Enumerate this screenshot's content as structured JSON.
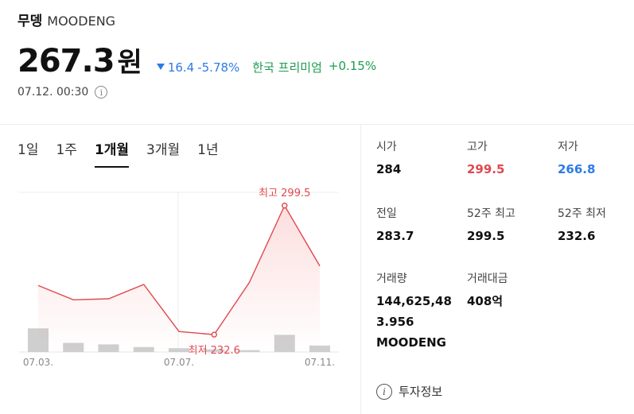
{
  "coin": {
    "name_ko": "무뎅",
    "name_en": "MOODENG"
  },
  "price": {
    "value": "267.3",
    "unit": "원"
  },
  "change": {
    "amount": "16.4",
    "percent": "-5.78%"
  },
  "premium": {
    "label": "한국 프리미엄",
    "value": "+0.15%"
  },
  "timestamp": "07.12. 00:30",
  "tabs": [
    {
      "label": "1일",
      "active": false
    },
    {
      "label": "1주",
      "active": false
    },
    {
      "label": "1개월",
      "active": true
    },
    {
      "label": "3개월",
      "active": false
    },
    {
      "label": "1년",
      "active": false
    }
  ],
  "stats": {
    "open": {
      "label": "시가",
      "value": "284"
    },
    "high": {
      "label": "고가",
      "value": "299.5"
    },
    "low": {
      "label": "저가",
      "value": "266.8"
    },
    "prev": {
      "label": "전일",
      "value": "283.7"
    },
    "high52": {
      "label": "52주 최고",
      "value": "299.5"
    },
    "low52": {
      "label": "52주 최저",
      "value": "232.6"
    },
    "volume": {
      "label": "거래량",
      "line1": "144,625,48",
      "line2": "3.956",
      "line3": "MOODENG"
    },
    "amount": {
      "label": "거래대금",
      "value": "408억"
    }
  },
  "invest_label": "투자정보",
  "colors": {
    "up": "#e0484f",
    "down": "#2d7be5",
    "premium": "#1e9c4f"
  },
  "chart_data": {
    "type": "line",
    "x": [
      "07.03.",
      "07.04.",
      "07.05.",
      "07.06.",
      "07.07.",
      "07.08.",
      "07.09.",
      "07.10.",
      "07.11."
    ],
    "values": [
      260.5,
      253.5,
      254.0,
      261.0,
      238.0,
      236.5,
      262.0,
      299.5,
      270.0
    ],
    "volume": [
      0.62,
      0.24,
      0.2,
      0.13,
      0.1,
      0.07,
      0.05,
      0.45,
      0.17
    ],
    "x_tick_labels": [
      "07.03.",
      "07.07.",
      "07.11."
    ],
    "annotations": {
      "max_label": "최고 299.5",
      "min_label": "최저 232.6"
    },
    "ylim": [
      228,
      306
    ]
  }
}
